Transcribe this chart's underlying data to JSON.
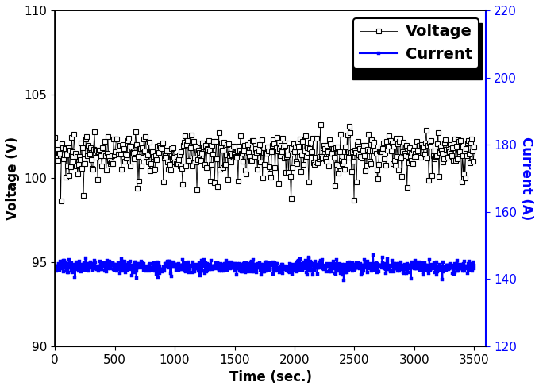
{
  "title": "",
  "xlabel": "Time (sec.)",
  "ylabel_left": "Voltage (V)",
  "ylabel_right": "Current (A)",
  "xlim": [
    0,
    3600
  ],
  "ylim_left": [
    90,
    110
  ],
  "ylim_right": [
    120,
    220
  ],
  "xticks": [
    0,
    500,
    1000,
    1500,
    2000,
    2500,
    3000,
    3500
  ],
  "yticks_left": [
    90,
    95,
    100,
    105,
    110
  ],
  "yticks_right": [
    120,
    140,
    160,
    180,
    200,
    220
  ],
  "voltage_color": "black",
  "current_color": "blue",
  "voltage_label": "Voltage",
  "current_label": "Current",
  "n_voltage": 500,
  "n_current": 1000,
  "voltage_mean": 101.5,
  "voltage_std": 0.55,
  "current_mean": 94.75,
  "current_std": 0.18,
  "background_color": "white",
  "legend_fontsize": 14,
  "axis_label_fontsize": 12,
  "tick_fontsize": 11,
  "figwidth": 6.79,
  "figheight": 4.91,
  "dpi": 100
}
